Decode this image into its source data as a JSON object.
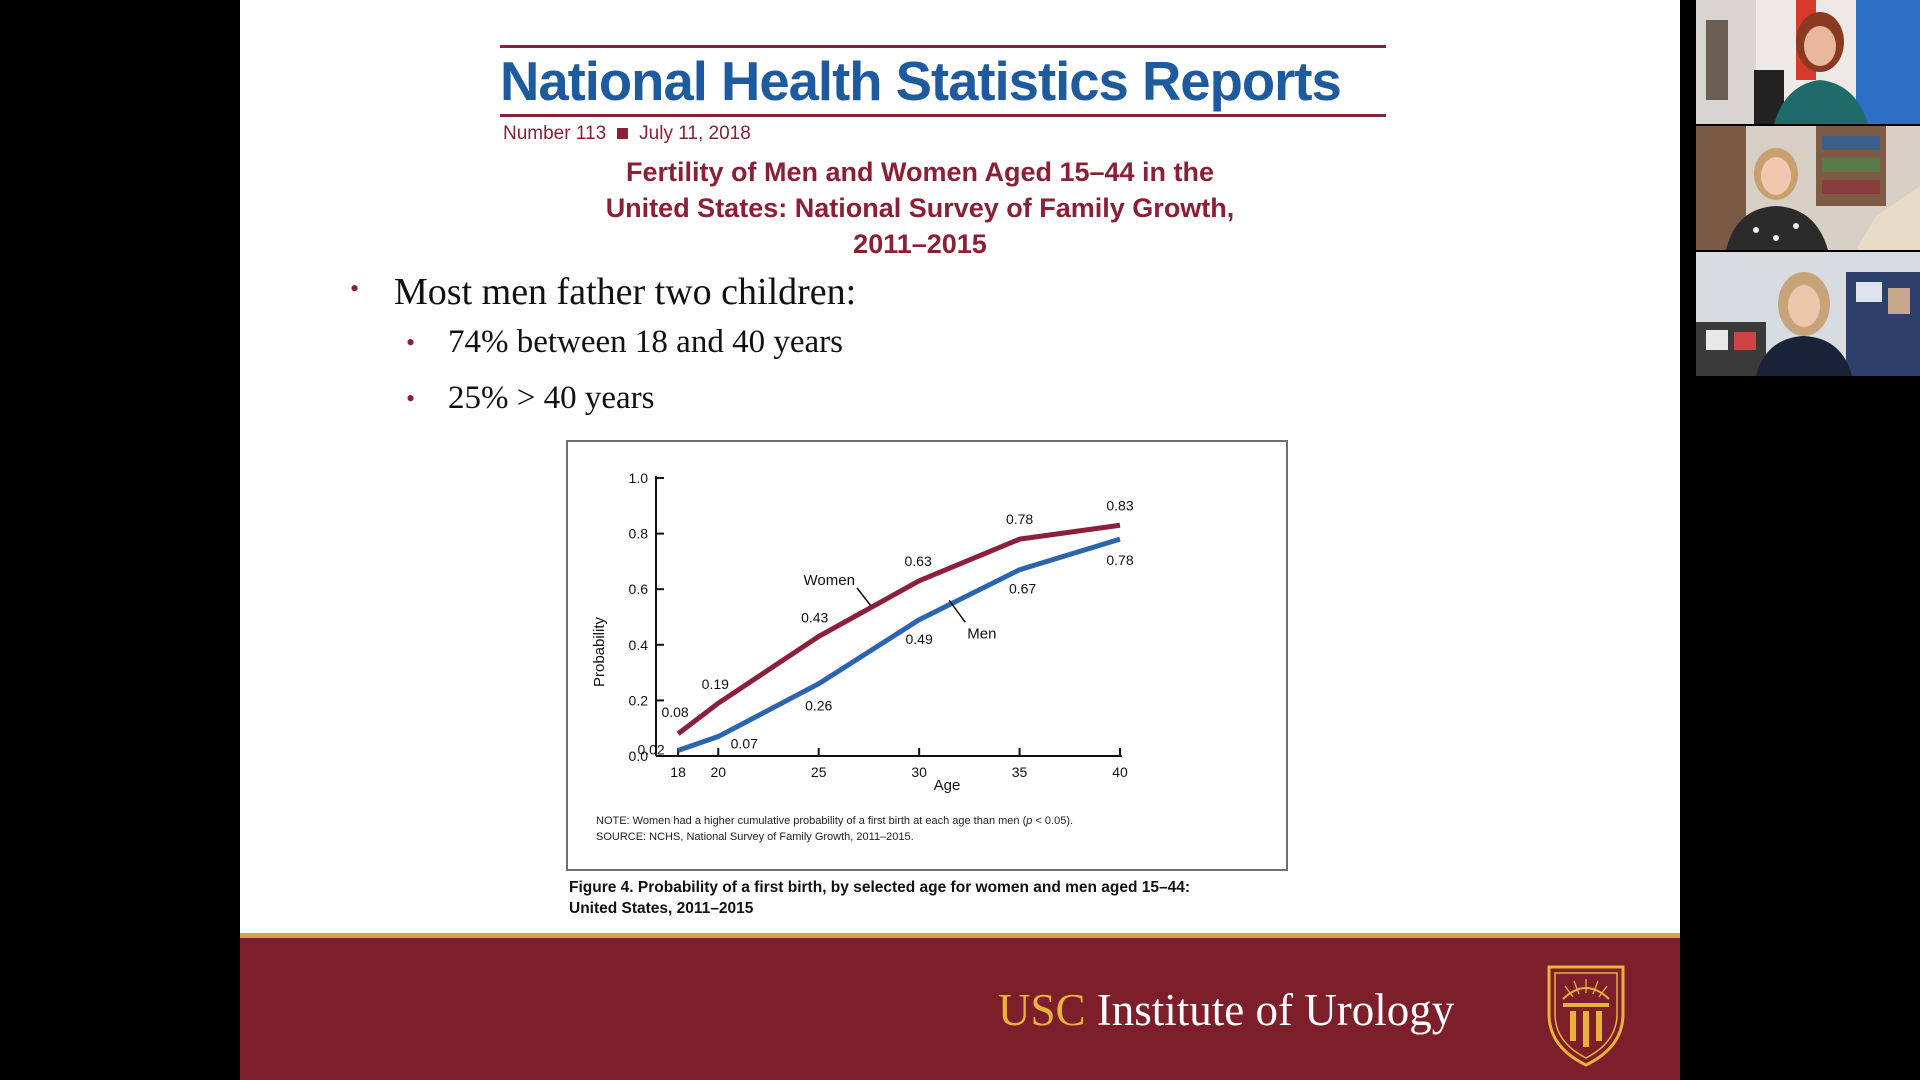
{
  "report": {
    "title": "National Health Statistics Reports",
    "number": "Number 113",
    "date": "July 11, 2018",
    "subtitle_line1": "Fertility of Men and Women Aged 15–44 in the",
    "subtitle_line2": "United States: National Survey of Family Growth,",
    "subtitle_line3": "2011–2015"
  },
  "bullets": {
    "main": "Most men father two children:",
    "sub1": "74% between 18 and 40 years",
    "sub2": "25% > 40 years"
  },
  "chart_data": {
    "type": "line",
    "xlabel": "Age",
    "ylabel": "Probability",
    "x": [
      18,
      20,
      25,
      30,
      35,
      40
    ],
    "xticks": [
      18,
      20,
      25,
      30,
      35,
      40
    ],
    "yticks": [
      0.0,
      0.2,
      0.4,
      0.6,
      0.8,
      1.0
    ],
    "ylim": [
      0,
      1.0
    ],
    "xlim": [
      16.9,
      40
    ],
    "grid": false,
    "series": [
      {
        "name": "Women",
        "values": [
          0.08,
          0.19,
          0.43,
          0.63,
          0.78,
          0.83
        ],
        "color": "#8b1f3c"
      },
      {
        "name": "Men",
        "values": [
          0.02,
          0.07,
          0.26,
          0.49,
          0.67,
          0.78
        ],
        "color": "#2c64b0"
      }
    ]
  },
  "figure": {
    "note_prefix": "NOTE: Women had a higher cumulative probability of a first birth at each age than men (",
    "note_p": "p",
    "note_suffix": " < 0.05).",
    "source": "SOURCE: NCHS, National Survey of Family Growth, 2011–2015.",
    "caption_line1": "Figure 4. Probability of a first birth, by selected age for women and men aged 15–44:",
    "caption_line2": "United States, 2011–2015"
  },
  "footer": {
    "usc": "USC",
    "institute": " Institute of Urology"
  },
  "colors": {
    "maroon": "#8b1f36",
    "blue": "#1d5a9e",
    "footer_bg": "#7c1f2b",
    "footer_gold": "#d9a43a"
  },
  "participants": [
    "participant-video-1",
    "participant-video-2",
    "participant-video-3"
  ]
}
